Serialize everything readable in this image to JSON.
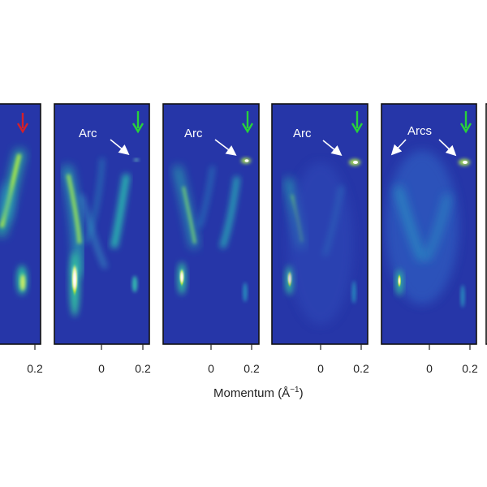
{
  "figure": {
    "x_axis_label": "Momentum (Å",
    "x_axis_label_exponent": "−1",
    "x_axis_label_suffix": ")",
    "background_color": "#2636a8",
    "colors": {
      "frame": "#111111",
      "tick": "#222222",
      "red_arrow": "#d4202a",
      "green_arrow": "#28d23a",
      "white_arrow": "#ffffff"
    },
    "panels": [
      {
        "annotation": "",
        "top_arrow": "red-arrow",
        "ticks": [
          "0.2"
        ]
      },
      {
        "annotation": "Arc",
        "top_arrow": "green-arrow",
        "ticks": [
          "0",
          "0.2"
        ]
      },
      {
        "annotation": "Arc",
        "top_arrow": "green-arrow",
        "ticks": [
          "0",
          "0.2"
        ]
      },
      {
        "annotation": "Arc",
        "top_arrow": "green-arrow",
        "ticks": [
          "0",
          "0.2"
        ]
      },
      {
        "annotation": "Arcs",
        "top_arrow": "green-arrow",
        "ticks": [
          "0",
          "0.2"
        ]
      },
      {
        "annotation": "",
        "top_arrow": "",
        "ticks": []
      }
    ]
  }
}
